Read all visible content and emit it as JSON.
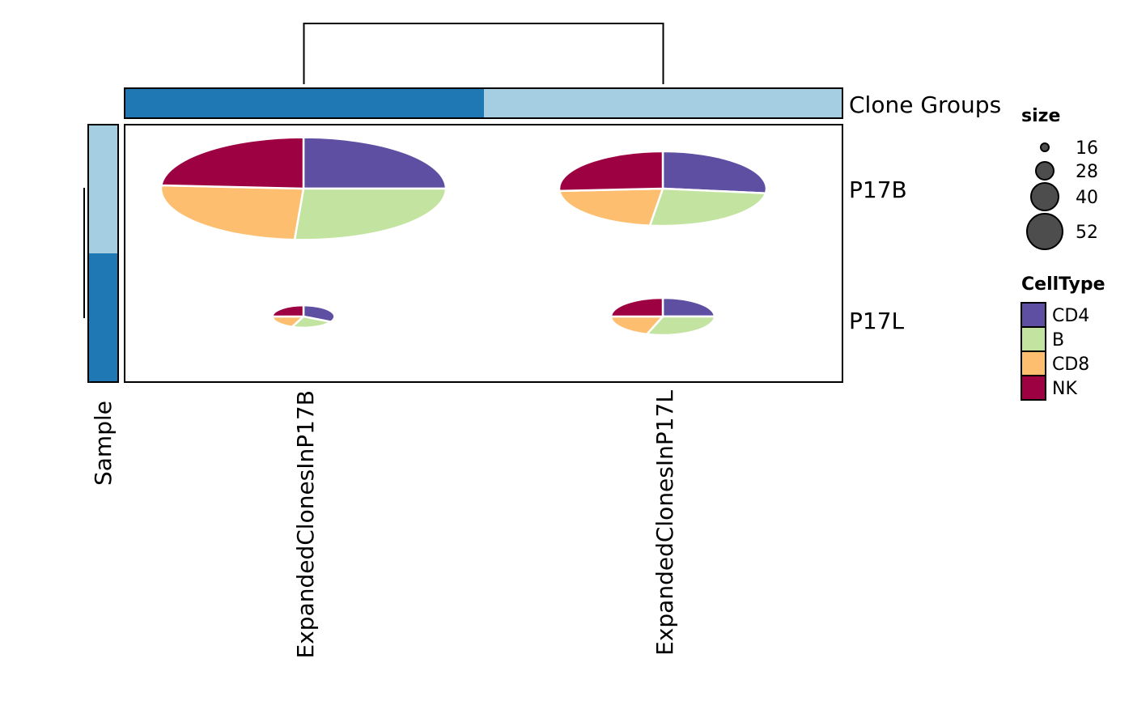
{
  "chart_data": {
    "type": "pie",
    "subtype": "clustered pie heatmap",
    "columns": [
      "ExpandedClonesInP17B",
      "ExpandedClonesInP17L"
    ],
    "rows": [
      "P17B",
      "P17L"
    ],
    "column_annotation": {
      "name": "Clone Groups",
      "colors": [
        "#1f78b4",
        "#a6cee3"
      ]
    },
    "row_annotation": {
      "name": "Sample",
      "colors": [
        "#a6cee3",
        "#1f78b4"
      ]
    },
    "column_dendrogram": true,
    "row_dendrogram": true,
    "categories": [
      "CD4",
      "B",
      "CD8",
      "NK"
    ],
    "category_colors": [
      "#5e4fa2",
      "#c2e4a0",
      "#fdbe6f",
      "#9e0142"
    ],
    "cells": [
      {
        "row": "P17B",
        "column": "ExpandedClonesInP17B",
        "size": 55,
        "values": [
          25,
          26,
          25,
          24
        ]
      },
      {
        "row": "P17B",
        "column": "ExpandedClonesInP17L",
        "size": 40,
        "values": [
          27,
          25,
          22,
          26
        ]
      },
      {
        "row": "P17L",
        "column": "ExpandedClonesInP17B",
        "size": 12,
        "values": [
          33,
          23,
          19,
          25
        ]
      },
      {
        "row": "P17L",
        "column": "ExpandedClonesInP17L",
        "size": 20,
        "values": [
          25,
          30,
          20,
          25
        ]
      }
    ],
    "legends": {
      "size": {
        "title": "size",
        "values": [
          16,
          28,
          40,
          52
        ]
      },
      "celltype": {
        "title": "CellType",
        "items": [
          "CD4",
          "B",
          "CD8",
          "NK"
        ]
      }
    }
  }
}
